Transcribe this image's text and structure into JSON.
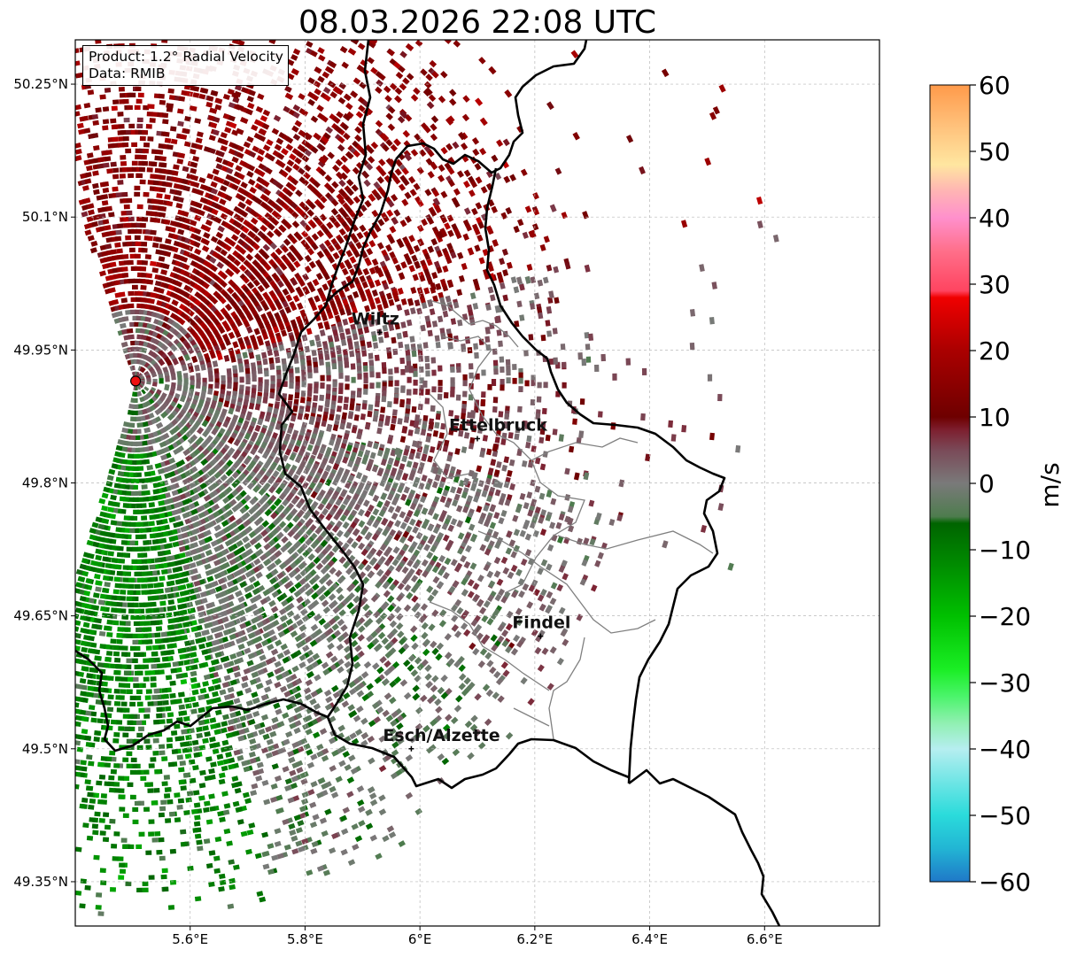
{
  "title": "08.03.2026 22:08 UTC",
  "info_box": {
    "product": "Product: 1.2° Radial Velocity",
    "data_source": "Data: RMIB"
  },
  "map": {
    "lon_range": [
      5.4,
      6.8
    ],
    "lat_range": [
      49.3,
      50.3
    ],
    "lon_ticks": [
      {
        "value": 5.6,
        "label": "5.6°E"
      },
      {
        "value": 5.8,
        "label": "5.8°E"
      },
      {
        "value": 6.0,
        "label": "6°E"
      },
      {
        "value": 6.2,
        "label": "6.2°E"
      },
      {
        "value": 6.4,
        "label": "6.4°E"
      },
      {
        "value": 6.6,
        "label": "6.6°E"
      }
    ],
    "lat_ticks": [
      {
        "value": 50.25,
        "label": "50.25°N"
      },
      {
        "value": 50.1,
        "label": "50.1°N"
      },
      {
        "value": 49.95,
        "label": "49.95°N"
      },
      {
        "value": 49.8,
        "label": "49.8°N"
      },
      {
        "value": 49.65,
        "label": "49.65°N"
      },
      {
        "value": 49.5,
        "label": "49.5°N"
      },
      {
        "value": 49.35,
        "label": "49.35°N"
      }
    ],
    "radar_site": {
      "lon": 5.505,
      "lat": 49.915
    },
    "cities": [
      {
        "name": "Wiltz",
        "lon": 5.93,
        "lat": 49.97
      },
      {
        "name": "Ettelbruck",
        "lon": 6.1,
        "lat": 49.85
      },
      {
        "name": "Findel",
        "lon": 6.21,
        "lat": 49.627
      },
      {
        "name": "Esch/Alzette",
        "lon": 5.985,
        "lat": 49.5
      }
    ]
  },
  "colorbar": {
    "unit": "m/s",
    "range": [
      -60,
      60
    ],
    "ticks": [
      {
        "value": 60,
        "label": "60"
      },
      {
        "value": 50,
        "label": "50"
      },
      {
        "value": 40,
        "label": "40"
      },
      {
        "value": 30,
        "label": "30"
      },
      {
        "value": 20,
        "label": "20"
      },
      {
        "value": 10,
        "label": "10"
      },
      {
        "value": 0,
        "label": "0"
      },
      {
        "value": -10,
        "label": "−10"
      },
      {
        "value": -20,
        "label": "−20"
      },
      {
        "value": -30,
        "label": "−30"
      },
      {
        "value": -40,
        "label": "−40"
      },
      {
        "value": -50,
        "label": "−50"
      },
      {
        "value": -60,
        "label": "−60"
      }
    ],
    "color_stops": [
      {
        "value": -60,
        "color": "#1f78c8"
      },
      {
        "value": -55,
        "color": "#22b5d4"
      },
      {
        "value": -50,
        "color": "#2adbdb"
      },
      {
        "value": -45,
        "color": "#6ee5e5"
      },
      {
        "value": -40,
        "color": "#b6eef0"
      },
      {
        "value": -36,
        "color": "#8ff0b0"
      },
      {
        "value": -32,
        "color": "#4af46a"
      },
      {
        "value": -28,
        "color": "#1aee24"
      },
      {
        "value": -20,
        "color": "#00c000"
      },
      {
        "value": -12,
        "color": "#008a00"
      },
      {
        "value": -6,
        "color": "#006400"
      },
      {
        "value": -5,
        "color": "#4e7c4e"
      },
      {
        "value": 0,
        "color": "#7a7a7a"
      },
      {
        "value": 5,
        "color": "#7a4a58"
      },
      {
        "value": 8,
        "color": "#7d2030"
      },
      {
        "value": 10,
        "color": "#6e0000"
      },
      {
        "value": 20,
        "color": "#aa0000"
      },
      {
        "value": 28,
        "color": "#f00000"
      },
      {
        "value": 29,
        "color": "#ff4460"
      },
      {
        "value": 35,
        "color": "#ff6f8a"
      },
      {
        "value": 40,
        "color": "#ff90cc"
      },
      {
        "value": 44,
        "color": "#ffb4b4"
      },
      {
        "value": 48,
        "color": "#ffe6a0"
      },
      {
        "value": 54,
        "color": "#ffc07a"
      },
      {
        "value": 60,
        "color": "#ff9a4a"
      }
    ]
  }
}
